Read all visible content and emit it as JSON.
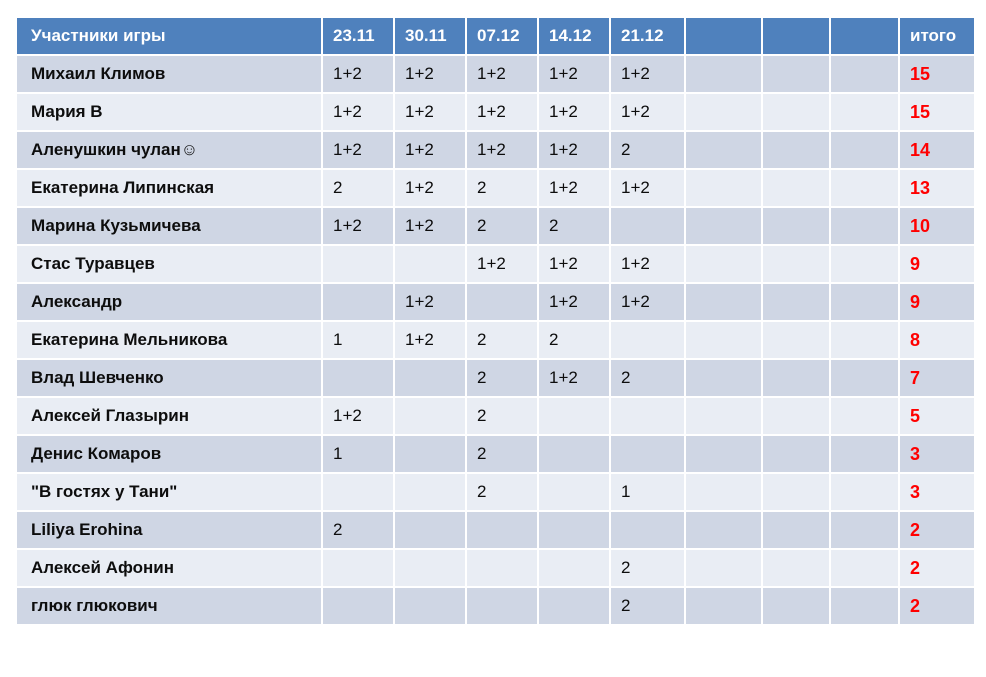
{
  "colors": {
    "header_bg": "#4f81bd",
    "header_text": "#ffffff",
    "band_dark": "#cfd6e4",
    "band_light": "#e9edf4",
    "total_text": "#ff0000",
    "body_text": "#0d0d0d",
    "grid": "#ffffff"
  },
  "table": {
    "columns": [
      "Участники игры",
      "23.11",
      "30.11",
      "07.12",
      "14.12",
      "21.12",
      "",
      "",
      "",
      "итого"
    ],
    "rows": [
      {
        "name": "Михаил Климов",
        "scores": [
          "1+2",
          "1+2",
          "1+2",
          "1+2",
          "1+2",
          "",
          "",
          ""
        ],
        "total": "15"
      },
      {
        "name": "Мария В",
        "scores": [
          "1+2",
          "1+2",
          "1+2",
          "1+2",
          "1+2",
          "",
          "",
          ""
        ],
        "total": "15"
      },
      {
        "name": "Аленушкин чулан☺",
        "scores": [
          "1+2",
          "1+2",
          "1+2",
          "1+2",
          "2",
          "",
          "",
          ""
        ],
        "total": "14"
      },
      {
        "name": "Екатерина Липинская",
        "scores": [
          "2",
          "1+2",
          "2",
          "1+2",
          "1+2",
          "",
          "",
          ""
        ],
        "total": "13"
      },
      {
        "name": "Марина Кузьмичева",
        "scores": [
          "1+2",
          "1+2",
          "2",
          "2",
          "",
          "",
          "",
          ""
        ],
        "total": "10"
      },
      {
        "name": "Стас Туравцев",
        "scores": [
          "",
          "",
          "1+2",
          "1+2",
          "1+2",
          "",
          "",
          ""
        ],
        "total": "9"
      },
      {
        "name": "Александр",
        "scores": [
          "",
          "1+2",
          "",
          "1+2",
          "1+2",
          "",
          "",
          ""
        ],
        "total": "9"
      },
      {
        "name": "Екатерина Мельникова",
        "scores": [
          "1",
          "1+2",
          "2",
          "2",
          "",
          "",
          "",
          ""
        ],
        "total": "8"
      },
      {
        "name": "Влад Шевченко",
        "scores": [
          "",
          "",
          "2",
          "1+2",
          "2",
          "",
          "",
          ""
        ],
        "total": "7"
      },
      {
        "name": "Алексей Глазырин",
        "scores": [
          "1+2",
          "",
          "2",
          "",
          "",
          "",
          "",
          ""
        ],
        "total": "5"
      },
      {
        "name": "Денис Комаров",
        "scores": [
          "1",
          "",
          "2",
          "",
          "",
          "",
          "",
          ""
        ],
        "total": "3"
      },
      {
        "name": "\"В гостях у Тани\"",
        "scores": [
          "",
          "",
          "2",
          "",
          "1",
          "",
          "",
          ""
        ],
        "total": "3"
      },
      {
        "name": "Liliya Erohina",
        "scores": [
          "2",
          "",
          "",
          "",
          "",
          "",
          "",
          ""
        ],
        "total": "2"
      },
      {
        "name": "Алексей Афонин",
        "scores": [
          "",
          "",
          "",
          "",
          "2",
          "",
          "",
          ""
        ],
        "total": "2"
      },
      {
        "name": "глюк глюкович",
        "scores": [
          "",
          "",
          "",
          "",
          "2",
          "",
          "",
          ""
        ],
        "total": "2"
      }
    ]
  }
}
